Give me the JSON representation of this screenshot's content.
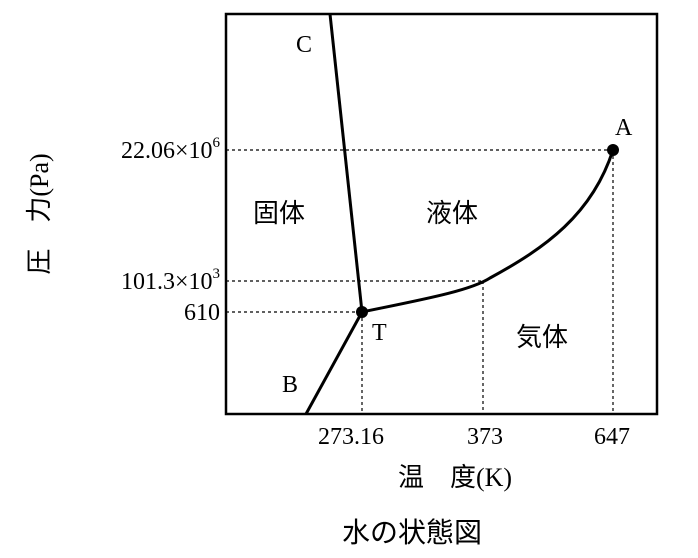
{
  "chart_data": {
    "type": "line",
    "title": "水の状態図",
    "xlabel": "温　度(K)",
    "ylabel": "圧　力(Pa)",
    "x_ticks": [
      "273.16",
      "373",
      "647"
    ],
    "y_ticks": [
      {
        "mantissa": "22.06×10",
        "exp": "6"
      },
      {
        "mantissa": "101.3×10",
        "exp": "3"
      },
      {
        "mantissa": "610",
        "exp": ""
      }
    ],
    "regions": [
      "固体",
      "液体",
      "気体"
    ],
    "points": {
      "A": {
        "label": "A",
        "x": 647,
        "y": 22060000
      },
      "T": {
        "label": "T",
        "x": 273.16,
        "y": 610
      },
      "B": {
        "label": "B"
      },
      "C": {
        "label": "C"
      }
    },
    "boiling_point": {
      "x": 373,
      "y": 101300
    },
    "series": [
      {
        "name": "",
        "curve": "vaporization",
        "from": "T",
        "to": "A"
      },
      {
        "name": "",
        "curve": "fusion",
        "from": "T",
        "to": "C"
      },
      {
        "name": "",
        "curve": "sublimation",
        "from": "B",
        "to": "T"
      }
    ]
  }
}
